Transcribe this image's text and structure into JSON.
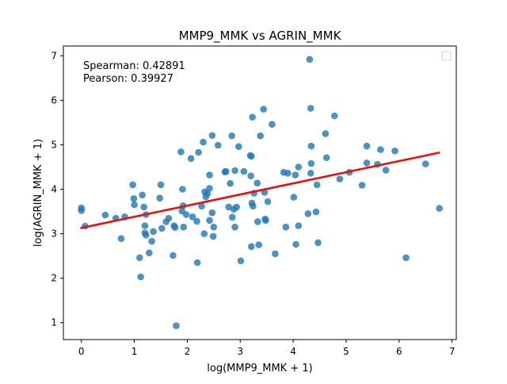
{
  "chart_data": {
    "type": "scatter",
    "title": "MMP9_MMK vs AGRIN_MMK",
    "xlabel": "log(MMP9_MMK + 1)",
    "ylabel": "log(AGRIN_MMK + 1)",
    "xlim": [
      -0.34,
      7.08
    ],
    "ylim": [
      0.62,
      7.22
    ],
    "xticks": [
      0,
      1,
      2,
      3,
      4,
      5,
      6,
      7
    ],
    "yticks": [
      1,
      2,
      3,
      4,
      5,
      6,
      7
    ],
    "annotations": [
      "Spearman: 0.42891",
      "Pearson: 0.39927"
    ],
    "legend": {
      "placement": "top-right",
      "entries": []
    },
    "grid": false,
    "point_color": "#1f77b4",
    "fit_color": "#e8110f",
    "fit_line": {
      "x": [
        0,
        6.75
      ],
      "y": [
        3.13,
        4.82
      ]
    },
    "points": [
      [
        0,
        3.58
      ],
      [
        0,
        3.52
      ],
      [
        0.07,
        3.17
      ],
      [
        0.45,
        3.42
      ],
      [
        0.65,
        3.35
      ],
      [
        0.75,
        2.89
      ],
      [
        0.82,
        3.38
      ],
      [
        0.97,
        4.1
      ],
      [
        0.99,
        3.79
      ],
      [
        1.0,
        3.65
      ],
      [
        1.1,
        2.46
      ],
      [
        1.12,
        2.03
      ],
      [
        1.15,
        3.87
      ],
      [
        1.18,
        3.6
      ],
      [
        1.2,
        3.18
      ],
      [
        1.2,
        3.02
      ],
      [
        1.22,
        2.97
      ],
      [
        1.22,
        3.43
      ],
      [
        1.28,
        2.57
      ],
      [
        1.33,
        2.83
      ],
      [
        1.36,
        3.05
      ],
      [
        1.48,
        3.8
      ],
      [
        1.5,
        4.1
      ],
      [
        1.52,
        3.12
      ],
      [
        1.6,
        3.27
      ],
      [
        1.65,
        3.35
      ],
      [
        1.73,
        2.51
      ],
      [
        1.75,
        3.18
      ],
      [
        1.77,
        3.14
      ],
      [
        1.79,
        0.93
      ],
      [
        1.88,
        4.84
      ],
      [
        1.9,
        3.51
      ],
      [
        1.91,
        4.0
      ],
      [
        1.92,
        3.63
      ],
      [
        1.93,
        3.15
      ],
      [
        1.98,
        3.43
      ],
      [
        2.07,
        4.69
      ],
      [
        2.1,
        3.38
      ],
      [
        2.18,
        3.28
      ],
      [
        2.19,
        2.35
      ],
      [
        2.21,
        4.83
      ],
      [
        2.27,
        3.62
      ],
      [
        2.3,
        5.06
      ],
      [
        2.32,
        3.0
      ],
      [
        2.33,
        3.94
      ],
      [
        2.35,
        3.83
      ],
      [
        2.38,
        3.9
      ],
      [
        2.42,
        3.3
      ],
      [
        2.42,
        4.32
      ],
      [
        2.42,
        4.02
      ],
      [
        2.47,
        5.21
      ],
      [
        2.47,
        3.47
      ],
      [
        2.49,
        2.94
      ],
      [
        2.5,
        3.15
      ],
      [
        2.58,
        4.99
      ],
      [
        2.71,
        4.39
      ],
      [
        2.73,
        4.4
      ],
      [
        2.78,
        3.6
      ],
      [
        2.81,
        4.13
      ],
      [
        2.84,
        5.2
      ],
      [
        2.85,
        3.37
      ],
      [
        2.88,
        3.55
      ],
      [
        2.9,
        4.42
      ],
      [
        2.9,
        3.15
      ],
      [
        2.93,
        3.6
      ],
      [
        2.97,
        4.96
      ],
      [
        3.01,
        2.39
      ],
      [
        3.07,
        4.4
      ],
      [
        3.19,
        4.76
      ],
      [
        3.2,
        4.3
      ],
      [
        3.21,
        4.74
      ],
      [
        3.21,
        2.71
      ],
      [
        3.22,
        3.69
      ],
      [
        3.23,
        5.62
      ],
      [
        3.24,
        3.62
      ],
      [
        3.26,
        3.91
      ],
      [
        3.32,
        4.14
      ],
      [
        3.33,
        3.27
      ],
      [
        3.35,
        2.75
      ],
      [
        3.38,
        5.2
      ],
      [
        3.44,
        5.8
      ],
      [
        3.46,
        3.93
      ],
      [
        3.47,
        3.33
      ],
      [
        3.48,
        3.3
      ],
      [
        3.52,
        3.72
      ],
      [
        3.6,
        5.46
      ],
      [
        3.66,
        2.55
      ],
      [
        3.82,
        4.38
      ],
      [
        3.86,
        3.15
      ],
      [
        3.9,
        4.36
      ],
      [
        4.01,
        3.82
      ],
      [
        4.04,
        4.32
      ],
      [
        4.05,
        2.76
      ],
      [
        4.1,
        3.18
      ],
      [
        4.1,
        4.5
      ],
      [
        4.28,
        3.45
      ],
      [
        4.31,
        6.92
      ],
      [
        4.33,
        4.36
      ],
      [
        4.33,
        5.82
      ],
      [
        4.34,
        4.97
      ],
      [
        4.34,
        4.58
      ],
      [
        4.43,
        3.49
      ],
      [
        4.45,
        4.1
      ],
      [
        4.47,
        2.8
      ],
      [
        4.61,
        5.25
      ],
      [
        4.63,
        4.71
      ],
      [
        4.78,
        5.65
      ],
      [
        4.88,
        4.23
      ],
      [
        5.06,
        4.38
      ],
      [
        5.3,
        4.09
      ],
      [
        5.39,
        4.97
      ],
      [
        5.39,
        4.59
      ],
      [
        5.59,
        4.56
      ],
      [
        5.65,
        4.89
      ],
      [
        5.75,
        4.43
      ],
      [
        5.92,
        4.86
      ],
      [
        6.13,
        2.46
      ],
      [
        6.5,
        4.57
      ],
      [
        6.76,
        3.57
      ]
    ]
  }
}
